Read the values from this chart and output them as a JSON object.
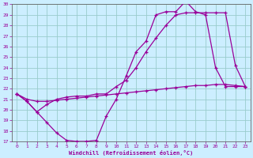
{
  "xlabel": "Windchill (Refroidissement éolien,°C)",
  "background_color": "#cceeff",
  "line_color": "#990099",
  "grid_color": "#99cccc",
  "xlim": [
    -0.5,
    23.5
  ],
  "ylim": [
    17,
    30
  ],
  "xticks": [
    0,
    1,
    2,
    3,
    4,
    5,
    6,
    7,
    8,
    9,
    10,
    11,
    12,
    13,
    14,
    15,
    16,
    17,
    18,
    19,
    20,
    21,
    22,
    23
  ],
  "yticks": [
    17,
    18,
    19,
    20,
    21,
    22,
    23,
    24,
    25,
    26,
    27,
    28,
    29,
    30
  ],
  "line1_x": [
    0,
    1,
    2,
    3,
    4,
    5,
    6,
    7,
    8,
    9,
    10,
    11,
    12,
    13,
    14,
    15,
    16,
    17,
    18,
    19,
    20,
    21,
    22,
    23
  ],
  "line1_y": [
    21.5,
    20.8,
    19.8,
    18.8,
    17.8,
    17.1,
    17.0,
    17.0,
    17.1,
    19.4,
    21.0,
    23.2,
    25.5,
    26.5,
    29.0,
    29.3,
    29.3,
    30.3,
    29.3,
    29.0,
    24.0,
    22.2,
    22.2,
    22.2
  ],
  "line2_x": [
    0,
    1,
    2,
    3,
    4,
    5,
    6,
    7,
    8,
    9,
    10,
    11,
    12,
    13,
    14,
    15,
    16,
    17,
    18,
    19,
    20,
    21,
    22,
    23
  ],
  "line2_y": [
    21.5,
    20.8,
    19.8,
    20.5,
    21.0,
    21.2,
    21.3,
    21.3,
    21.5,
    21.5,
    22.2,
    22.8,
    24.0,
    25.5,
    26.8,
    28.0,
    29.0,
    29.2,
    29.2,
    29.2,
    29.2,
    29.2,
    24.2,
    22.2
  ],
  "line3_x": [
    0,
    1,
    2,
    3,
    4,
    5,
    6,
    7,
    8,
    9,
    10,
    11,
    12,
    13,
    14,
    15,
    16,
    17,
    18,
    19,
    20,
    21,
    22,
    23
  ],
  "line3_y": [
    21.5,
    21.0,
    20.8,
    20.8,
    20.9,
    21.0,
    21.1,
    21.2,
    21.3,
    21.4,
    21.5,
    21.6,
    21.7,
    21.8,
    21.9,
    22.0,
    22.1,
    22.2,
    22.3,
    22.3,
    22.4,
    22.4,
    22.3,
    22.2
  ]
}
